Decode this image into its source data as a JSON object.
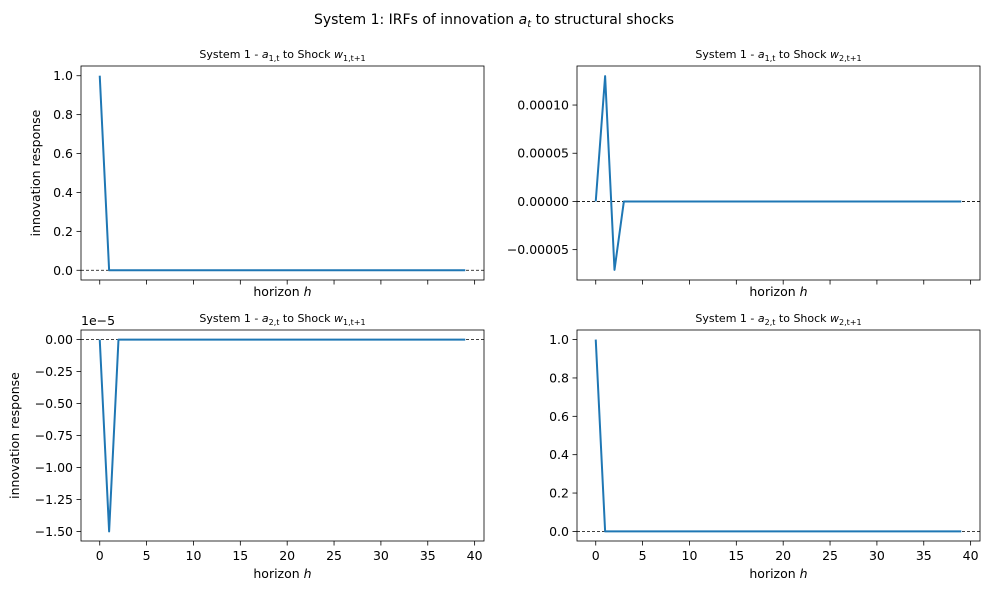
{
  "figure": {
    "suptitle": "System 1: IRFs of innovation a_t to structural shocks",
    "suptitle_main": "System 1: IRFs of innovation ",
    "suptitle_var": "a",
    "suptitle_sub": "t",
    "suptitle_tail": " to structural shocks",
    "line_color": "#1f77b4",
    "zero_line_color": "#000000"
  },
  "chart_data": [
    {
      "type": "line",
      "title": "System 1 - a_{1,t} to Shock w_{1,t+1}",
      "title_prefix": "System 1 - ",
      "title_var": "a",
      "title_var_sub": "1,t",
      "title_mid": " to Shock ",
      "title_shock": "w",
      "title_shock_sub": "1,t+1",
      "xlabel_main": "horizon ",
      "xlabel_var": "h",
      "ylabel": "innovation response",
      "xlim": [
        -2,
        41
      ],
      "ylim": [
        -0.05,
        1.05
      ],
      "xticks": [
        0,
        5,
        10,
        15,
        20,
        25,
        30,
        35,
        40
      ],
      "xtick_labels": [],
      "yticks": [
        0.0,
        0.2,
        0.4,
        0.6,
        0.8,
        1.0
      ],
      "ytick_labels": [
        "0.0",
        "0.2",
        "0.4",
        "0.6",
        "0.8",
        "1.0"
      ],
      "offset_text": "",
      "zero_line": true,
      "series": [
        {
          "x": [
            0,
            1,
            2,
            3,
            4,
            5,
            6,
            7,
            8,
            9,
            10,
            11,
            12,
            13,
            14,
            15,
            16,
            17,
            18,
            19,
            20,
            21,
            22,
            23,
            24,
            25,
            26,
            27,
            28,
            29,
            30,
            31,
            32,
            33,
            34,
            35,
            36,
            37,
            38,
            39
          ],
          "values": [
            1.0,
            0,
            0,
            0,
            0,
            0,
            0,
            0,
            0,
            0,
            0,
            0,
            0,
            0,
            0,
            0,
            0,
            0,
            0,
            0,
            0,
            0,
            0,
            0,
            0,
            0,
            0,
            0,
            0,
            0,
            0,
            0,
            0,
            0,
            0,
            0,
            0,
            0,
            0,
            0
          ]
        }
      ]
    },
    {
      "type": "line",
      "title": "System 1 - a_{1,t} to Shock w_{2,t+1}",
      "title_prefix": "System 1 - ",
      "title_var": "a",
      "title_var_sub": "1,t",
      "title_mid": " to Shock ",
      "title_shock": "w",
      "title_shock_sub": "2,t+1",
      "xlabel_main": "horizon ",
      "xlabel_var": "h",
      "ylabel": "",
      "xlim": [
        -2,
        41
      ],
      "ylim": [
        -8.15e-05,
        0.0001405
      ],
      "xticks": [
        0,
        5,
        10,
        15,
        20,
        25,
        30,
        35,
        40
      ],
      "xtick_labels": [],
      "yticks": [
        -5e-05,
        0.0,
        5e-05,
        0.0001
      ],
      "ytick_labels": [
        "−0.00005",
        "0.00000",
        "0.00005",
        "0.00010"
      ],
      "offset_text": "",
      "zero_line": true,
      "series": [
        {
          "x": [
            0,
            1,
            2,
            3,
            4,
            5,
            6,
            7,
            8,
            9,
            10,
            11,
            12,
            13,
            14,
            15,
            16,
            17,
            18,
            19,
            20,
            21,
            22,
            23,
            24,
            25,
            26,
            27,
            28,
            29,
            30,
            31,
            32,
            33,
            34,
            35,
            36,
            37,
            38,
            39
          ],
          "values": [
            0,
            0.00013,
            -7.1e-05,
            0,
            0,
            0,
            0,
            0,
            0,
            0,
            0,
            0,
            0,
            0,
            0,
            0,
            0,
            0,
            0,
            0,
            0,
            0,
            0,
            0,
            0,
            0,
            0,
            0,
            0,
            0,
            0,
            0,
            0,
            0,
            0,
            0,
            0,
            0,
            0,
            0
          ]
        }
      ]
    },
    {
      "type": "line",
      "title": "System 1 - a_{2,t} to Shock w_{1,t+1}",
      "title_prefix": "System 1 - ",
      "title_var": "a",
      "title_var_sub": "2,t",
      "title_mid": " to Shock ",
      "title_shock": "w",
      "title_shock_sub": "1,t+1",
      "xlabel_main": "horizon ",
      "xlabel_var": "h",
      "ylabel": "innovation response",
      "xlim": [
        -2,
        41
      ],
      "ylim": [
        -1.575,
        0.075
      ],
      "xticks": [
        0,
        5,
        10,
        15,
        20,
        25,
        30,
        35,
        40
      ],
      "xtick_labels": [
        "0",
        "5",
        "10",
        "15",
        "20",
        "25",
        "30",
        "35",
        "40"
      ],
      "yticks": [
        -1.5,
        -1.25,
        -1.0,
        -0.75,
        -0.5,
        -0.25,
        0.0
      ],
      "ytick_labels": [
        "−1.50",
        "−1.25",
        "−1.00",
        "−0.75",
        "−0.50",
        "−0.25",
        "0.00"
      ],
      "offset_text": "1e−5",
      "zero_line": true,
      "series": [
        {
          "x": [
            0,
            1,
            2,
            3,
            4,
            5,
            6,
            7,
            8,
            9,
            10,
            11,
            12,
            13,
            14,
            15,
            16,
            17,
            18,
            19,
            20,
            21,
            22,
            23,
            24,
            25,
            26,
            27,
            28,
            29,
            30,
            31,
            32,
            33,
            34,
            35,
            36,
            37,
            38,
            39
          ],
          "values": [
            0,
            -1.5,
            0,
            0,
            0,
            0,
            0,
            0,
            0,
            0,
            0,
            0,
            0,
            0,
            0,
            0,
            0,
            0,
            0,
            0,
            0,
            0,
            0,
            0,
            0,
            0,
            0,
            0,
            0,
            0,
            0,
            0,
            0,
            0,
            0,
            0,
            0,
            0,
            0,
            0
          ]
        }
      ]
    },
    {
      "type": "line",
      "title": "System 1 - a_{2,t} to Shock w_{2,t+1}",
      "title_prefix": "System 1 - ",
      "title_var": "a",
      "title_var_sub": "2,t",
      "title_mid": " to Shock ",
      "title_shock": "w",
      "title_shock_sub": "2,t+1",
      "xlabel_main": "horizon ",
      "xlabel_var": "h",
      "ylabel": "",
      "xlim": [
        -2,
        41
      ],
      "ylim": [
        -0.05,
        1.05
      ],
      "xticks": [
        0,
        5,
        10,
        15,
        20,
        25,
        30,
        35,
        40
      ],
      "xtick_labels": [
        "0",
        "5",
        "10",
        "15",
        "20",
        "25",
        "30",
        "35",
        "40"
      ],
      "yticks": [
        0.0,
        0.2,
        0.4,
        0.6,
        0.8,
        1.0
      ],
      "ytick_labels": [
        "0.0",
        "0.2",
        "0.4",
        "0.6",
        "0.8",
        "1.0"
      ],
      "offset_text": "",
      "zero_line": true,
      "series": [
        {
          "x": [
            0,
            1,
            2,
            3,
            4,
            5,
            6,
            7,
            8,
            9,
            10,
            11,
            12,
            13,
            14,
            15,
            16,
            17,
            18,
            19,
            20,
            21,
            22,
            23,
            24,
            25,
            26,
            27,
            28,
            29,
            30,
            31,
            32,
            33,
            34,
            35,
            36,
            37,
            38,
            39
          ],
          "values": [
            1.0,
            0,
            0,
            0,
            0,
            0,
            0,
            0,
            0,
            0,
            0,
            0,
            0,
            0,
            0,
            0,
            0,
            0,
            0,
            0,
            0,
            0,
            0,
            0,
            0,
            0,
            0,
            0,
            0,
            0,
            0,
            0,
            0,
            0,
            0,
            0,
            0,
            0,
            0,
            0
          ]
        }
      ]
    }
  ]
}
